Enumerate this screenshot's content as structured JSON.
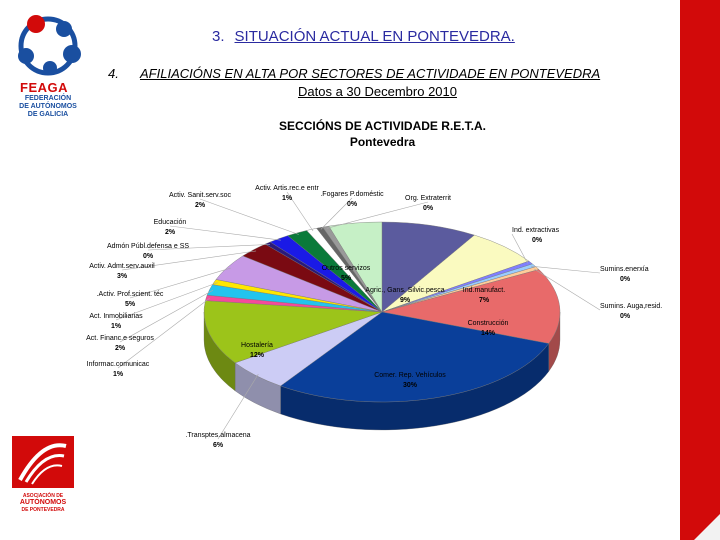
{
  "header": {
    "section_number": "3.",
    "section_title": "SITUACIÓN ACTUAL EN PONTEVEDRA.",
    "subsection_number": "4.",
    "subsection_title": "AFILIACIÓNS EN ALTA POR SECTORES DE ACTIVIDADE EN PONTEVEDRA",
    "date_line": "Datos a 30 Decembro 2010"
  },
  "logos": {
    "top_brand": "FEAGA",
    "top_line1": "FEDERACIÓN",
    "top_line2": "DE AUTÓNOMOS",
    "top_line3": "DE GALICIA",
    "bottom_line1": "ASOCIACIÓN DE",
    "bottom_line2": "AUTÓNOMOS",
    "bottom_line3": "DE PONTEVEDRA"
  },
  "chart_data": {
    "type": "pie",
    "title": "SECCIÓNS DE ACTIVIDADE R.E.T.A.",
    "subtitle": "Pontevedra",
    "slices": [
      {
        "label": "Agric., Gans. Silvic.pesca",
        "value": 9,
        "pct_label": "9%",
        "color": "#5b5b9e"
      },
      {
        "label": "Ind.manufact.",
        "value": 7,
        "pct_label": "7%",
        "color": "#fafac0"
      },
      {
        "label": "Ind. extractivas",
        "value": 0,
        "pct_label": "0%",
        "color": "#7f7fff"
      },
      {
        "label": "Sumins.enerxía",
        "value": 0,
        "pct_label": "0%",
        "color": "#99ccff"
      },
      {
        "label": "Sumins. Auga,resid.",
        "value": 0,
        "pct_label": "0%",
        "color": "#ffcc99"
      },
      {
        "label": "Construcción",
        "value": 14,
        "pct_label": "14%",
        "color": "#e86a6a"
      },
      {
        "label": "Comer. Rep. Vehículos",
        "value": 30,
        "pct_label": "30%",
        "color": "#0a3f9a"
      },
      {
        "label": ".Transptes.almacena",
        "value": 6,
        "pct_label": "6%",
        "color": "#ccccf5"
      },
      {
        "label": "Hostalería",
        "value": 12,
        "pct_label": "12%",
        "color": "#9cc41a"
      },
      {
        "label": "Informac.comunicac",
        "value": 1,
        "pct_label": "1%",
        "color": "#f54a9a"
      },
      {
        "label": "Act. Financ.e seguros",
        "value": 2,
        "pct_label": "2%",
        "color": "#22c4ee"
      },
      {
        "label": "Act. Inmobiliarias",
        "value": 1,
        "pct_label": "1%",
        "color": "#ffe600"
      },
      {
        "label": ".Activ. Prof.scient. téc",
        "value": 5,
        "pct_label": "5%",
        "color": "#c79ae6"
      },
      {
        "label": "Activ. Admt.serv.auxil",
        "value": 3,
        "pct_label": "3%",
        "color": "#7a0a12"
      },
      {
        "label": "Admón Públ.defensa e SS",
        "value": 0,
        "pct_label": "0%",
        "color": "#2a1a7a"
      },
      {
        "label": "Educación",
        "value": 2,
        "pct_label": "2%",
        "color": "#1a1ae6"
      },
      {
        "label": "Activ. Sanit.serv.soc",
        "value": 2,
        "pct_label": "2%",
        "color": "#0a7a3a"
      },
      {
        "label": "Activ. Artis.rec.e entr",
        "value": 1,
        "pct_label": "1%",
        "color": "#ffffff"
      },
      {
        "label": ".Fogares P.doméstic",
        "value": 0,
        "pct_label": "0%",
        "color": "#666666"
      },
      {
        "label": "Org. Extraterrit",
        "value": 0,
        "pct_label": "0%",
        "color": "#999999"
      },
      {
        "label": "Outros servizos",
        "value": 5,
        "pct_label": "5%",
        "color": "#c6f0c6"
      }
    ]
  }
}
